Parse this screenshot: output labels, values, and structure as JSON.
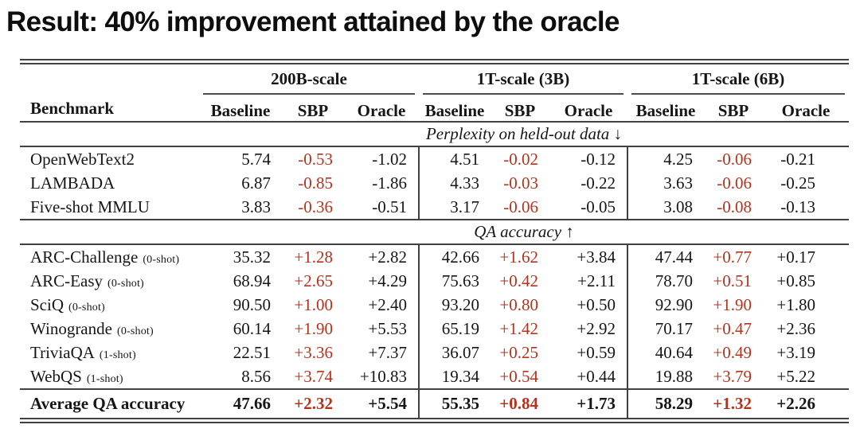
{
  "title": "Result: 40% improvement attained by the oracle",
  "colors": {
    "sbp_highlight": "#b5321c",
    "rule": "#414141"
  },
  "table": {
    "benchmark_header": "Benchmark",
    "group_headers": [
      "200B-scale",
      "1T-scale (3B)",
      "1T-scale (6B)"
    ],
    "metric_headers": [
      "Baseline",
      "SBP",
      "Oracle"
    ],
    "sections": [
      {
        "caption": "Perplexity on held-out data ↓",
        "rows": [
          {
            "benchmark": "OpenWebText2",
            "note": "",
            "values": [
              [
                "5.74",
                "-0.53",
                "-1.02"
              ],
              [
                "4.51",
                "-0.02",
                "-0.12"
              ],
              [
                "4.25",
                "-0.06",
                "-0.21"
              ]
            ]
          },
          {
            "benchmark": "LAMBADA",
            "note": "",
            "values": [
              [
                "6.87",
                "-0.85",
                "-1.86"
              ],
              [
                "4.33",
                "-0.03",
                "-0.22"
              ],
              [
                "3.63",
                "-0.06",
                "-0.25"
              ]
            ]
          },
          {
            "benchmark": "Five-shot MMLU",
            "note": "",
            "values": [
              [
                "3.83",
                "-0.36",
                "-0.51"
              ],
              [
                "3.17",
                "-0.06",
                "-0.05"
              ],
              [
                "3.08",
                "-0.08",
                "-0.13"
              ]
            ]
          }
        ]
      },
      {
        "caption": "QA accuracy ↑",
        "rows": [
          {
            "benchmark": "ARC-Challenge",
            "note": "(0-shot)",
            "values": [
              [
                "35.32",
                "+1.28",
                "+2.82"
              ],
              [
                "42.66",
                "+1.62",
                "+3.84"
              ],
              [
                "47.44",
                "+0.77",
                "+0.17"
              ]
            ]
          },
          {
            "benchmark": "ARC-Easy",
            "note": "(0-shot)",
            "values": [
              [
                "68.94",
                "+2.65",
                "+4.29"
              ],
              [
                "75.63",
                "+0.42",
                "+2.11"
              ],
              [
                "78.70",
                "+0.51",
                "+0.85"
              ]
            ]
          },
          {
            "benchmark": "SciQ",
            "note": "(0-shot)",
            "values": [
              [
                "90.50",
                "+1.00",
                "+2.40"
              ],
              [
                "93.20",
                "+0.80",
                "+0.50"
              ],
              [
                "92.90",
                "+1.90",
                "+1.80"
              ]
            ]
          },
          {
            "benchmark": "Winogrande",
            "note": "(0-shot)",
            "values": [
              [
                "60.14",
                "+1.90",
                "+5.53"
              ],
              [
                "65.19",
                "+1.42",
                "+2.92"
              ],
              [
                "70.17",
                "+0.47",
                "+2.36"
              ]
            ]
          },
          {
            "benchmark": "TriviaQA",
            "note": "(1-shot)",
            "values": [
              [
                "22.51",
                "+3.36",
                "+7.37"
              ],
              [
                "36.07",
                "+0.25",
                "+0.59"
              ],
              [
                "40.64",
                "+0.49",
                "+3.19"
              ]
            ]
          },
          {
            "benchmark": "WebQS",
            "note": "(1-shot)",
            "values": [
              [
                "8.56",
                "+3.74",
                "+10.83"
              ],
              [
                "19.34",
                "+0.54",
                "+0.44"
              ],
              [
                "19.88",
                "+3.79",
                "+5.22"
              ]
            ]
          }
        ]
      }
    ],
    "summary_row": {
      "benchmark": "Average QA accuracy",
      "values": [
        [
          "47.66",
          "+2.32",
          "+5.54"
        ],
        [
          "55.35",
          "+0.84",
          "+1.73"
        ],
        [
          "58.29",
          "+1.32",
          "+2.26"
        ]
      ]
    }
  }
}
